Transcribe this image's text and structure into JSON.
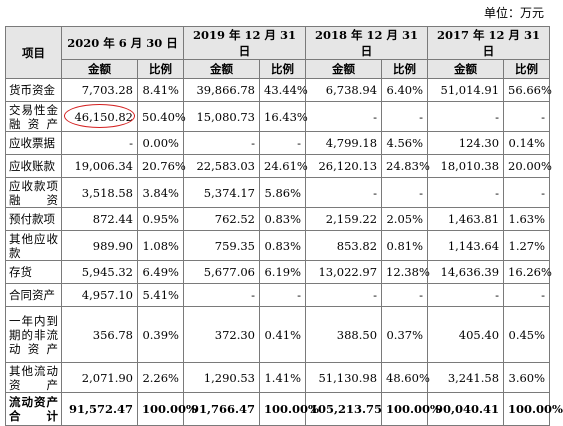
{
  "unit_label": "单位：万元",
  "header": {
    "item": "项目",
    "periods": [
      "2020 年 6 月 30 日",
      "2019 年 12 月 31 日",
      "2018 年 12 月 31 日",
      "2017 年 12 月 31 日"
    ],
    "amount": "金额",
    "ratio": "比例"
  },
  "rows": [
    {
      "label": "货币资金",
      "cells": [
        "7,703.28",
        "8.41%",
        "39,866.78",
        "43.44%",
        "6,738.94",
        "6.40%",
        "51,014.91",
        "56.66%"
      ]
    },
    {
      "label": "交易性金融资产",
      "cells": [
        "46,150.82",
        "50.40%",
        "15,080.73",
        "16.43%",
        "-",
        "-",
        "-",
        "-"
      ]
    },
    {
      "label": "应收票据",
      "cells": [
        "-",
        "0.00%",
        "-",
        "-",
        "4,799.18",
        "4.56%",
        "124.30",
        "0.14%"
      ]
    },
    {
      "label": "应收账款",
      "cells": [
        "19,006.34",
        "20.76%",
        "22,583.03",
        "24.61%",
        "26,120.13",
        "24.83%",
        "18,010.38",
        "20.00%"
      ]
    },
    {
      "label": "应收款项融资",
      "cells": [
        "3,518.58",
        "3.84%",
        "5,374.17",
        "5.86%",
        "-",
        "-",
        "-",
        "-"
      ]
    },
    {
      "label": "预付款项",
      "cells": [
        "872.44",
        "0.95%",
        "762.52",
        "0.83%",
        "2,159.22",
        "2.05%",
        "1,463.81",
        "1.63%"
      ]
    },
    {
      "label": "其他应收款",
      "cells": [
        "989.90",
        "1.08%",
        "759.35",
        "0.83%",
        "853.82",
        "0.81%",
        "1,143.64",
        "1.27%"
      ]
    },
    {
      "label": "存货",
      "cells": [
        "5,945.32",
        "6.49%",
        "5,677.06",
        "6.19%",
        "13,022.97",
        "12.38%",
        "14,636.39",
        "16.26%"
      ]
    },
    {
      "label": "合同资产",
      "cells": [
        "4,957.10",
        "5.41%",
        "-",
        "-",
        "-",
        "-",
        "-",
        "-"
      ]
    },
    {
      "label": "一年内到期的非流动资产",
      "cells": [
        "356.78",
        "0.39%",
        "372.30",
        "0.41%",
        "388.50",
        "0.37%",
        "405.40",
        "0.45%"
      ]
    },
    {
      "label": "其他流动资产",
      "cells": [
        "2,071.90",
        "2.26%",
        "1,290.53",
        "1.41%",
        "51,130.98",
        "48.60%",
        "3,241.58",
        "3.60%"
      ]
    },
    {
      "label": "流动资产合计",
      "cells": [
        "91,572.47",
        "100.00%",
        "91,766.47",
        "100.00%",
        "105,213.75",
        "100.00%",
        "90,040.41",
        "100.00%"
      ]
    }
  ]
}
